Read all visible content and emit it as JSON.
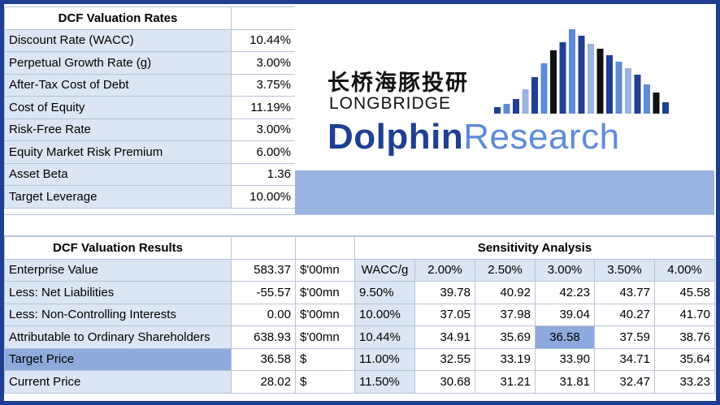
{
  "rates": {
    "title": "DCF Valuation Rates",
    "rows": [
      {
        "label": "Discount Rate (WACC)",
        "value": "10.44%"
      },
      {
        "label": "Perpetual Growth Rate (g)",
        "value": "3.00%"
      },
      {
        "label": "After-Tax Cost of Debt",
        "value": "3.75%"
      },
      {
        "label": "Cost of Equity",
        "value": "11.19%"
      },
      {
        "label": "Risk-Free Rate",
        "value": "3.00%"
      },
      {
        "label": "Equity Market Risk Premium",
        "value": "6.00%"
      },
      {
        "label": "Asset Beta",
        "value": "1.36"
      },
      {
        "label": "Target Leverage",
        "value": "10.00%"
      }
    ]
  },
  "logo": {
    "chinese": "长桥海豚投研",
    "longbridge": "LONGBRIDGE",
    "dolphin": "Dolphin",
    "research": "Research"
  },
  "results": {
    "title": "DCF Valuation Results",
    "rows": [
      {
        "label": "Enterprise Value",
        "value": "583.37",
        "unit": "$'00mn"
      },
      {
        "label": "Less: Net Liabilities",
        "value": "-55.57",
        "unit": "$'00mn"
      },
      {
        "label": "Less: Non-Controlling Interests",
        "value": "0.00",
        "unit": "$'00mn"
      },
      {
        "label": "Attributable to Ordinary Shareholders",
        "value": "638.93",
        "unit": "$'00mn"
      },
      {
        "label": "Target Price",
        "value": "36.58",
        "unit": "$"
      },
      {
        "label": "Current Price",
        "value": "28.02",
        "unit": "$"
      }
    ]
  },
  "sensitivity": {
    "title": "Sensitivity Analysis",
    "corner": "WACC/g",
    "g_headers": [
      "2.00%",
      "2.50%",
      "3.00%",
      "3.50%",
      "4.00%"
    ],
    "rows": [
      {
        "wacc": "9.50%",
        "values": [
          "39.78",
          "40.92",
          "42.23",
          "43.77",
          "45.58"
        ]
      },
      {
        "wacc": "10.00%",
        "values": [
          "37.05",
          "37.98",
          "39.04",
          "40.27",
          "41.70"
        ]
      },
      {
        "wacc": "10.44%",
        "values": [
          "34.91",
          "35.69",
          "36.58",
          "37.59",
          "38.76"
        ]
      },
      {
        "wacc": "11.00%",
        "values": [
          "32.55",
          "33.19",
          "33.90",
          "34.71",
          "35.64"
        ]
      },
      {
        "wacc": "11.50%",
        "values": [
          "30.68",
          "31.21",
          "31.81",
          "32.47",
          "33.23"
        ]
      }
    ]
  },
  "colors": {
    "frame": "#1f3f93",
    "label_fill": "#dce5f3",
    "highlight": "#8eaadc",
    "dolphin": "#1f3f93",
    "research": "#5c8bd9"
  }
}
